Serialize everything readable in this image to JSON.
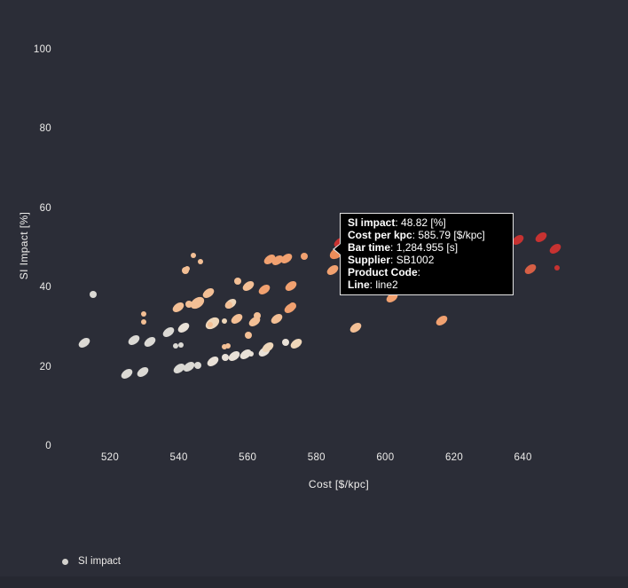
{
  "chart_data": {
    "type": "scatter",
    "title": "",
    "xlabel": "Cost [$/kpc]",
    "ylabel": "SI Impact [%]",
    "x_ticks": [
      520,
      540,
      560,
      580,
      600,
      620,
      640
    ],
    "y_ticks": [
      0,
      20,
      40,
      60,
      80,
      100
    ],
    "xlim": [
      508,
      655
    ],
    "ylim": [
      0,
      100
    ],
    "grid": false,
    "background_color": "#2b2d37",
    "legend": {
      "position": "bottom-left",
      "entries": [
        {
          "label": "SI impact",
          "marker_color": "#d3d1cd"
        }
      ]
    },
    "palette": {
      "gray": "#dbd9d4",
      "light": "#e9e1d7",
      "lpeach": "#eed6b9",
      "peach": "#f3bf95",
      "orange": "#f1a170",
      "dorange": "#ee8d5a",
      "rorange": "#d75f45",
      "red": "#c73231"
    },
    "series_name": "SI impact",
    "points": [
      [
        515.0,
        38.5,
        "gray",
        "s"
      ],
      [
        512.5,
        26.3,
        "gray",
        "m"
      ],
      [
        525.0,
        18.5,
        "gray",
        "m"
      ],
      [
        529.5,
        19.0,
        "gray",
        "m"
      ],
      [
        527.0,
        27.0,
        "gray",
        "m"
      ],
      [
        531.5,
        26.6,
        "gray",
        "m"
      ],
      [
        537.0,
        29.0,
        "gray",
        "m"
      ],
      [
        541.5,
        30.2,
        "light",
        "m"
      ],
      [
        539.0,
        25.5,
        "gray",
        "xs"
      ],
      [
        540.5,
        25.8,
        "gray",
        "xs"
      ],
      [
        540.0,
        19.8,
        "gray",
        "m"
      ],
      [
        543.0,
        20.3,
        "gray",
        "m"
      ],
      [
        545.5,
        20.6,
        "gray",
        "s"
      ],
      [
        550.0,
        21.5,
        "light",
        "m"
      ],
      [
        553.5,
        22.5,
        "light",
        "s"
      ],
      [
        556.0,
        22.9,
        "light",
        "m"
      ],
      [
        559.5,
        23.3,
        "light",
        "m"
      ],
      [
        564.8,
        24.0,
        "light",
        "m"
      ],
      [
        561.0,
        23.4,
        "light",
        "xs"
      ],
      [
        549.8,
        31.2,
        "lpeach",
        "l"
      ],
      [
        553.2,
        31.8,
        "lpeach",
        "xs"
      ],
      [
        555.0,
        36.2,
        "lpeach",
        "m"
      ],
      [
        566.0,
        25.2,
        "lpeach",
        "m"
      ],
      [
        571.0,
        26.3,
        "light",
        "s"
      ],
      [
        574.0,
        26.0,
        "lpeach",
        "m"
      ],
      [
        529.8,
        33.6,
        "peach",
        "xs"
      ],
      [
        529.8,
        31.5,
        "peach",
        "xs"
      ],
      [
        539.8,
        35.2,
        "peach",
        "m"
      ],
      [
        542.0,
        44.6,
        "peach",
        "s"
      ],
      [
        544.2,
        48.3,
        "peach",
        "xs"
      ],
      [
        546.3,
        46.8,
        "peach",
        "xs"
      ],
      [
        542.5,
        45.0,
        "peach",
        "xs"
      ],
      [
        545.3,
        36.3,
        "peach",
        "l"
      ],
      [
        543.0,
        36.0,
        "peach",
        "s"
      ],
      [
        548.6,
        38.8,
        "peach",
        "m"
      ],
      [
        556.9,
        32.3,
        "peach",
        "m"
      ],
      [
        562.0,
        31.6,
        "peach",
        "m"
      ],
      [
        568.5,
        32.3,
        "peach",
        "m"
      ],
      [
        562.8,
        33.0,
        "peach",
        "s"
      ],
      [
        557.0,
        41.9,
        "peach",
        "s"
      ],
      [
        560.2,
        40.6,
        "peach",
        "m"
      ],
      [
        554.5,
        35.8,
        "peach",
        "s"
      ],
      [
        553.2,
        25.2,
        "peach",
        "xs"
      ],
      [
        554.3,
        25.6,
        "peach",
        "xs"
      ],
      [
        560.2,
        28.2,
        "peach",
        "s"
      ],
      [
        549.2,
        30.9,
        "peach",
        "xs"
      ],
      [
        591.5,
        30.0,
        "peach",
        "m"
      ],
      [
        564.8,
        39.7,
        "orange",
        "m"
      ],
      [
        572.6,
        40.6,
        "orange",
        "m"
      ],
      [
        566.5,
        47.4,
        "orange",
        "m"
      ],
      [
        568.8,
        47.0,
        "orange",
        "m"
      ],
      [
        571.2,
        47.6,
        "orange",
        "m"
      ],
      [
        576.4,
        48.0,
        "orange",
        "s"
      ],
      [
        584.7,
        44.6,
        "orange",
        "m"
      ],
      [
        572.3,
        35.0,
        "orange",
        "m"
      ],
      [
        573.1,
        35.6,
        "orange",
        "s"
      ],
      [
        602.0,
        37.6,
        "orange",
        "m"
      ],
      [
        616.4,
        31.9,
        "orange",
        "m"
      ],
      [
        586.8,
        51.5,
        "red",
        "m"
      ],
      [
        585.8,
        48.8,
        "dorange",
        "l"
      ],
      [
        642.2,
        44.8,
        "rorange",
        "m"
      ],
      [
        645.3,
        53.0,
        "red",
        "m"
      ],
      [
        649.5,
        50.0,
        "red",
        "m"
      ],
      [
        649.8,
        45.1,
        "red",
        "xs"
      ],
      [
        638.6,
        52.2,
        "red",
        "m"
      ]
    ],
    "hovered_point": {
      "si_impact": 48.82,
      "cost_per_kpc": 585.79
    }
  },
  "tooltip": {
    "rows": [
      {
        "label": "SI impact",
        "value": "48.82 [%]"
      },
      {
        "label": "Cost per kpc",
        "value": "585.79 [$/kpc]"
      },
      {
        "label": "Bar time",
        "value": "1,284.955 [s]"
      },
      {
        "label": "Supplier",
        "value": "SB1002"
      },
      {
        "label": "Product Code",
        "value": ""
      },
      {
        "label": "Line",
        "value": "line2"
      }
    ]
  }
}
